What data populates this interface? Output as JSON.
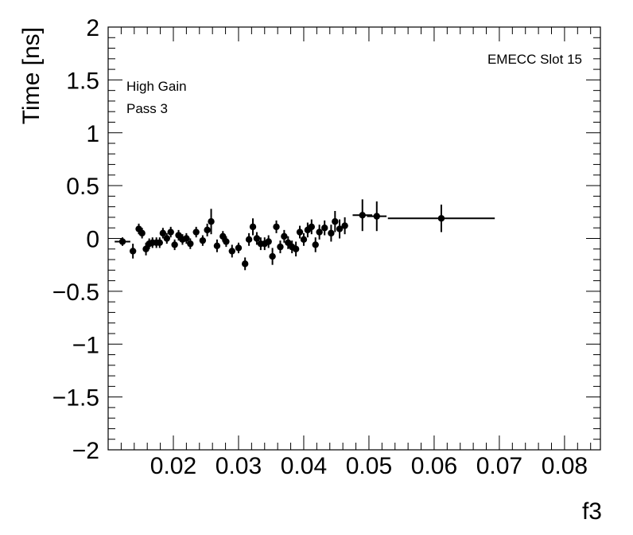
{
  "chart_data": {
    "type": "scatter",
    "xlabel": "f3",
    "ylabel": "Time [ns]",
    "xlim": [
      0.01,
      0.0855
    ],
    "ylim": [
      -2,
      2
    ],
    "x_ticks": [
      0.02,
      0.03,
      0.04,
      0.05,
      0.06,
      0.07,
      0.08
    ],
    "x_tick_labels": [
      "0.02",
      "0.03",
      "0.04",
      "0.05",
      "0.06",
      "0.07",
      "0.08"
    ],
    "y_ticks": [
      -2,
      -1.5,
      -1,
      -0.5,
      0,
      0.5,
      1,
      1.5,
      2
    ],
    "y_tick_labels": [
      "−2",
      "−1.5",
      "−1",
      "−0.5",
      "0",
      "0.5",
      "1",
      "1.5",
      "2"
    ],
    "annotations": {
      "gain": "High Gain",
      "pass": "Pass 3",
      "slot": "EMECC Slot 15"
    },
    "series": [
      {
        "marker": "filled-circle",
        "color": "#000000",
        "points": [
          {
            "x": 0.0122,
            "y": -0.03,
            "xerr": 0.0012,
            "yerr": 0.04
          },
          {
            "x": 0.0138,
            "y": -0.12,
            "xerr": 0.0004,
            "yerr": 0.07
          },
          {
            "x": 0.0147,
            "y": 0.09,
            "xerr": 0.0003,
            "yerr": 0.05
          },
          {
            "x": 0.0152,
            "y": 0.05,
            "xerr": 0.0003,
            "yerr": 0.05
          },
          {
            "x": 0.0158,
            "y": -0.1,
            "xerr": 0.0003,
            "yerr": 0.06
          },
          {
            "x": 0.0163,
            "y": -0.05,
            "xerr": 0.0003,
            "yerr": 0.05
          },
          {
            "x": 0.0168,
            "y": -0.04,
            "xerr": 0.0003,
            "yerr": 0.05
          },
          {
            "x": 0.0174,
            "y": -0.04,
            "xerr": 0.0003,
            "yerr": 0.05
          },
          {
            "x": 0.0179,
            "y": -0.04,
            "xerr": 0.0003,
            "yerr": 0.05
          },
          {
            "x": 0.0184,
            "y": 0.05,
            "xerr": 0.0003,
            "yerr": 0.05
          },
          {
            "x": 0.019,
            "y": 0.0,
            "xerr": 0.0003,
            "yerr": 0.05
          },
          {
            "x": 0.0196,
            "y": 0.06,
            "xerr": 0.0003,
            "yerr": 0.05
          },
          {
            "x": 0.0202,
            "y": -0.06,
            "xerr": 0.0003,
            "yerr": 0.05
          },
          {
            "x": 0.0208,
            "y": 0.03,
            "xerr": 0.0003,
            "yerr": 0.05
          },
          {
            "x": 0.0214,
            "y": -0.01,
            "xerr": 0.0003,
            "yerr": 0.05
          },
          {
            "x": 0.022,
            "y": 0.0,
            "xerr": 0.0003,
            "yerr": 0.05
          },
          {
            "x": 0.0226,
            "y": -0.05,
            "xerr": 0.0003,
            "yerr": 0.05
          },
          {
            "x": 0.0235,
            "y": 0.06,
            "xerr": 0.0004,
            "yerr": 0.05
          },
          {
            "x": 0.0245,
            "y": -0.02,
            "xerr": 0.0004,
            "yerr": 0.05
          },
          {
            "x": 0.0252,
            "y": 0.08,
            "xerr": 0.0003,
            "yerr": 0.06
          },
          {
            "x": 0.0258,
            "y": 0.16,
            "xerr": 0.0003,
            "yerr": 0.12
          },
          {
            "x": 0.0267,
            "y": -0.07,
            "xerr": 0.0003,
            "yerr": 0.06
          },
          {
            "x": 0.0276,
            "y": 0.02,
            "xerr": 0.0003,
            "yerr": 0.05
          },
          {
            "x": 0.0281,
            "y": -0.03,
            "xerr": 0.0003,
            "yerr": 0.05
          },
          {
            "x": 0.029,
            "y": -0.12,
            "xerr": 0.0003,
            "yerr": 0.06
          },
          {
            "x": 0.03,
            "y": -0.09,
            "xerr": 0.0003,
            "yerr": 0.05
          },
          {
            "x": 0.031,
            "y": -0.24,
            "xerr": 0.0003,
            "yerr": 0.06
          },
          {
            "x": 0.0316,
            "y": -0.01,
            "xerr": 0.0003,
            "yerr": 0.06
          },
          {
            "x": 0.0322,
            "y": 0.11,
            "xerr": 0.0003,
            "yerr": 0.08
          },
          {
            "x": 0.0328,
            "y": 0.0,
            "xerr": 0.0003,
            "yerr": 0.06
          },
          {
            "x": 0.0334,
            "y": -0.05,
            "xerr": 0.0003,
            "yerr": 0.06
          },
          {
            "x": 0.034,
            "y": -0.05,
            "xerr": 0.0003,
            "yerr": 0.06
          },
          {
            "x": 0.0346,
            "y": -0.03,
            "xerr": 0.0003,
            "yerr": 0.06
          },
          {
            "x": 0.0352,
            "y": -0.17,
            "xerr": 0.0003,
            "yerr": 0.08
          },
          {
            "x": 0.0358,
            "y": 0.11,
            "xerr": 0.0003,
            "yerr": 0.06
          },
          {
            "x": 0.0364,
            "y": -0.08,
            "xerr": 0.0003,
            "yerr": 0.06
          },
          {
            "x": 0.037,
            "y": 0.02,
            "xerr": 0.0003,
            "yerr": 0.06
          },
          {
            "x": 0.0376,
            "y": -0.04,
            "xerr": 0.0003,
            "yerr": 0.06
          },
          {
            "x": 0.0382,
            "y": -0.08,
            "xerr": 0.0003,
            "yerr": 0.06
          },
          {
            "x": 0.0388,
            "y": -0.1,
            "xerr": 0.0003,
            "yerr": 0.07
          },
          {
            "x": 0.0394,
            "y": 0.06,
            "xerr": 0.0003,
            "yerr": 0.06
          },
          {
            "x": 0.04,
            "y": -0.01,
            "xerr": 0.0003,
            "yerr": 0.06
          },
          {
            "x": 0.0406,
            "y": 0.08,
            "xerr": 0.0003,
            "yerr": 0.07
          },
          {
            "x": 0.0412,
            "y": 0.11,
            "xerr": 0.0003,
            "yerr": 0.07
          },
          {
            "x": 0.0418,
            "y": -0.06,
            "xerr": 0.0003,
            "yerr": 0.07
          },
          {
            "x": 0.0424,
            "y": 0.06,
            "xerr": 0.0003,
            "yerr": 0.07
          },
          {
            "x": 0.0432,
            "y": 0.1,
            "xerr": 0.0004,
            "yerr": 0.07
          },
          {
            "x": 0.0442,
            "y": 0.05,
            "xerr": 0.0004,
            "yerr": 0.08
          },
          {
            "x": 0.0448,
            "y": 0.16,
            "xerr": 0.0003,
            "yerr": 0.1
          },
          {
            "x": 0.0455,
            "y": 0.09,
            "xerr": 0.0003,
            "yerr": 0.09
          },
          {
            "x": 0.0463,
            "y": 0.12,
            "xerr": 0.0004,
            "yerr": 0.08
          },
          {
            "x": 0.049,
            "y": 0.22,
            "xerr": 0.0015,
            "yerr": 0.15
          },
          {
            "x": 0.0512,
            "y": 0.21,
            "xerr": 0.0015,
            "yerr": 0.14
          },
          {
            "x": 0.0611,
            "y": 0.19,
            "xerr": 0.0082,
            "yerr": 0.13
          }
        ]
      }
    ]
  }
}
